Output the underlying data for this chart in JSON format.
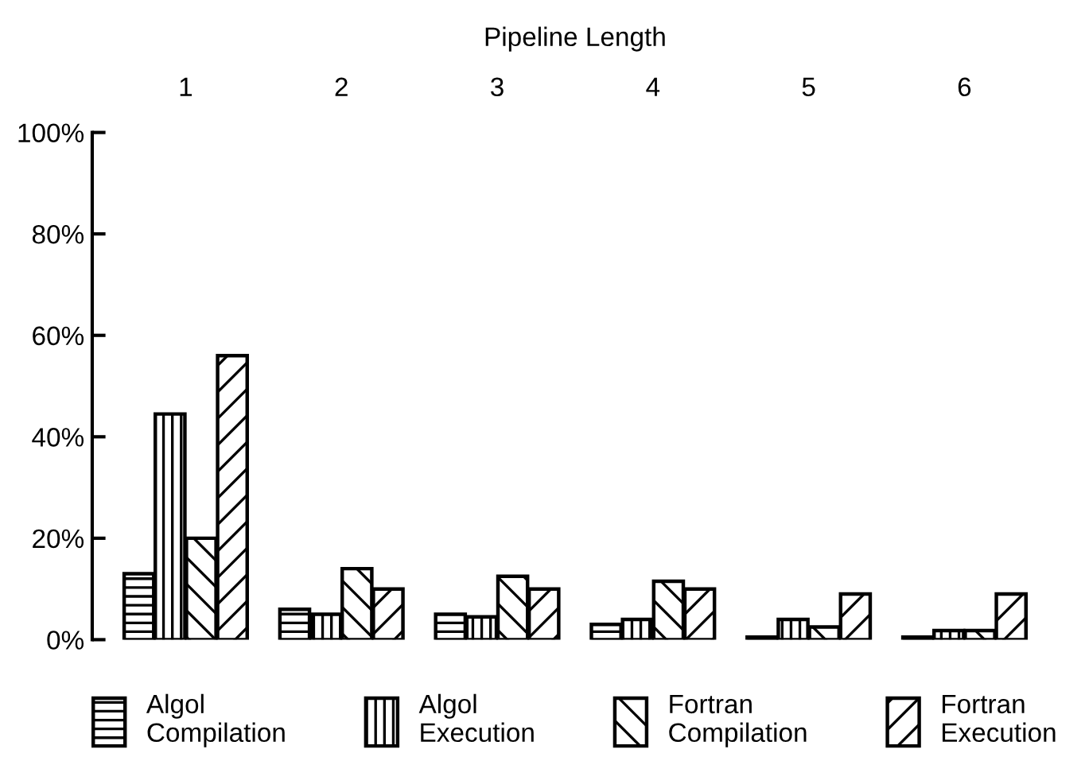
{
  "chart_data": {
    "type": "bar",
    "xlabel": "Pipeline Length",
    "categories": [
      "1",
      "2",
      "3",
      "4",
      "5",
      "6"
    ],
    "series": [
      {
        "name": "Algol\nCompilation",
        "color": "#000000",
        "values": [
          13,
          6,
          5,
          3,
          0.5,
          0.5
        ]
      },
      {
        "name": "Algol\nExecution",
        "color": "#000000",
        "values": [
          44.5,
          5,
          4.5,
          4,
          4,
          1.8
        ]
      },
      {
        "name": "Fortran\nCompilation",
        "color": "#000000",
        "values": [
          20,
          14,
          12.5,
          11.5,
          2.5,
          1.8
        ]
      },
      {
        "name": "Fortran\nExecution",
        "color": "#000000",
        "values": [
          56,
          10,
          10,
          10,
          9,
          9
        ]
      }
    ],
    "ylim": [
      0,
      100
    ],
    "yticks": [
      {
        "value": 0,
        "label": "0%"
      },
      {
        "value": 20,
        "label": "20%"
      },
      {
        "value": 40,
        "label": "40%"
      },
      {
        "value": 60,
        "label": "60%"
      },
      {
        "value": 80,
        "label": "80%"
      },
      {
        "value": 100,
        "label": "100%"
      }
    ],
    "grid": false,
    "legend": "bottom"
  }
}
